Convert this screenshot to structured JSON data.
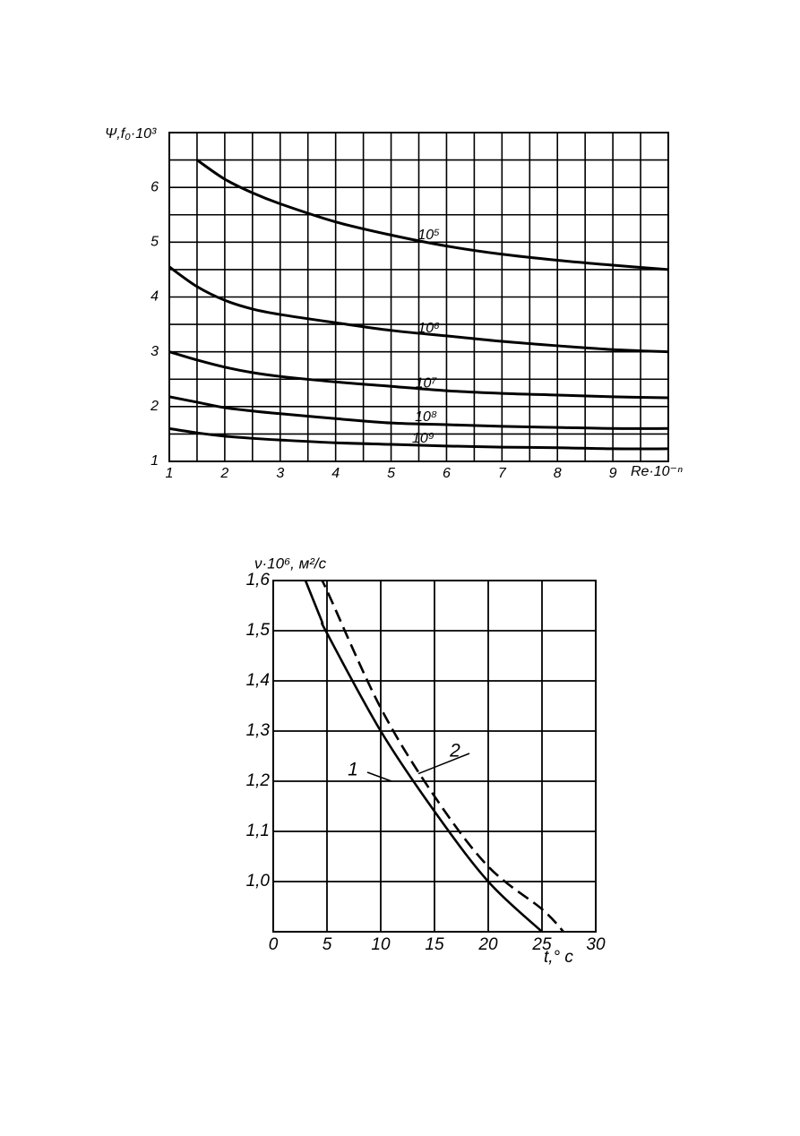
{
  "chart_data": [
    {
      "type": "line",
      "y_label": "Ψ,f₀·10³",
      "x_label": "Re·10⁻ⁿ",
      "x": [
        1,
        1.5,
        2,
        2.5,
        3,
        4,
        5,
        6,
        7,
        8,
        9,
        10
      ],
      "series": [
        {
          "name": "10⁵",
          "color": "#000000",
          "values": [
            null,
            6.5,
            6.15,
            5.9,
            5.7,
            5.37,
            5.13,
            4.93,
            4.78,
            4.67,
            4.58,
            4.5
          ]
        },
        {
          "name": "10⁶",
          "color": "#000000",
          "values": [
            4.55,
            4.19,
            3.94,
            3.78,
            3.68,
            3.53,
            3.39,
            3.29,
            3.19,
            3.11,
            3.04,
            3.0
          ]
        },
        {
          "name": "10⁷",
          "color": "#000000",
          "values": [
            3.0,
            2.85,
            2.72,
            2.62,
            2.55,
            2.45,
            2.37,
            2.29,
            2.24,
            2.21,
            2.18,
            2.16
          ]
        },
        {
          "name": "10⁸",
          "color": "#000000",
          "values": [
            2.18,
            2.08,
            1.98,
            1.92,
            1.87,
            1.78,
            1.7,
            1.67,
            1.64,
            1.62,
            1.6,
            1.6
          ]
        },
        {
          "name": "10⁹",
          "color": "#000000",
          "values": [
            1.6,
            1.52,
            1.46,
            1.42,
            1.39,
            1.34,
            1.31,
            1.28,
            1.26,
            1.25,
            1.23,
            1.23
          ]
        }
      ],
      "xlim": [
        1,
        10
      ],
      "ylim": [
        1,
        7
      ],
      "xticks": [
        1,
        2,
        3,
        4,
        5,
        6,
        7,
        8,
        9
      ],
      "yticks": [
        1,
        2,
        3,
        4,
        5,
        6
      ],
      "minor_xticks": [
        1.5,
        2.5,
        3.5,
        4.5,
        5.5,
        6.5,
        7.5,
        8.5,
        9.5
      ],
      "minor_yticks": [
        1.5,
        2.5,
        3.5,
        4.5,
        5.5,
        6.5
      ],
      "grid": true
    },
    {
      "type": "line",
      "y_label": "ν·10⁶, м²/с",
      "x_label": "t,° c",
      "x": [
        3,
        4.5,
        5,
        10,
        15,
        20,
        25,
        27
      ],
      "series": [
        {
          "name": "1",
          "color": "#000000",
          "dashed": false,
          "values": [
            1.6,
            1.52,
            1.495,
            1.3,
            1.14,
            1.0,
            0.9,
            null
          ]
        },
        {
          "name": "2",
          "color": "#000000",
          "dashed": true,
          "values": [
            null,
            1.6,
            1.58,
            1.346,
            1.17,
            1.03,
            0.945,
            0.9
          ]
        }
      ],
      "xlim": [
        0,
        30
      ],
      "ylim": [
        0.9,
        1.6
      ],
      "xticks": [
        0,
        5,
        10,
        15,
        20,
        25,
        30
      ],
      "yticks": [
        {
          "value": 1.0,
          "label": "1,0"
        },
        {
          "value": 1.1,
          "label": "1,1"
        },
        {
          "value": 1.2,
          "label": "1,2"
        },
        {
          "value": 1.3,
          "label": "1,3"
        },
        {
          "value": 1.4,
          "label": "1,4"
        },
        {
          "value": 1.5,
          "label": "1,5"
        },
        {
          "value": 1.6,
          "label": "1,6"
        }
      ],
      "grid": true
    }
  ]
}
